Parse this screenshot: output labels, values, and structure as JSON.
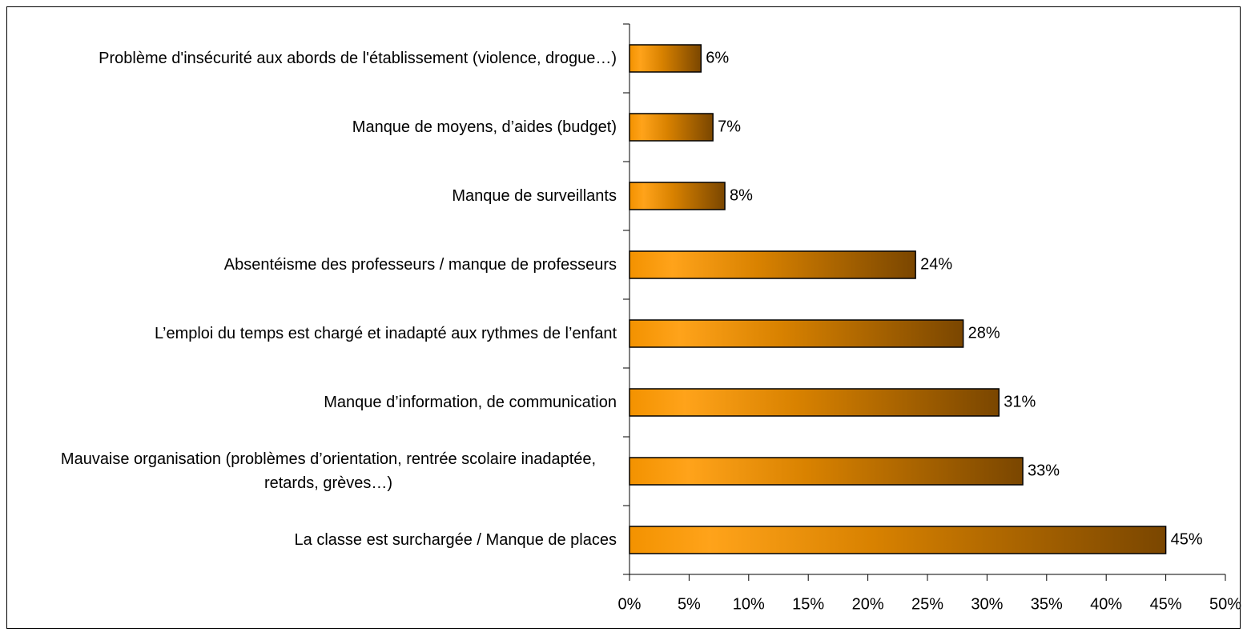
{
  "chart_data": {
    "type": "bar",
    "orientation": "horizontal",
    "categories": [
      "Problème d'insécurité aux abords de l'établissement (violence, drogue…)",
      "Manque de moyens, d’aides (budget)",
      "Manque de surveillants",
      "Absentéisme des professeurs / manque de professeurs",
      "L’emploi du temps est chargé et inadapté aux rythmes de l’enfant",
      "Manque d’information, de communication",
      "Mauvaise organisation (problèmes d’orientation, rentrée scolaire inadaptée, retards, grèves…)",
      "La classe est surchargée / Manque de places"
    ],
    "values": [
      6,
      7,
      8,
      24,
      28,
      31,
      33,
      45
    ],
    "value_labels": [
      "6%",
      "7%",
      "8%",
      "24%",
      "28%",
      "31%",
      "33%",
      "45%"
    ],
    "color": "#f39200",
    "xlim": [
      0,
      50
    ],
    "xticks": [
      {
        "value": 0,
        "label": "0%"
      },
      {
        "value": 5,
        "label": "5%"
      },
      {
        "value": 10,
        "label": "10%"
      },
      {
        "value": 15,
        "label": "15%"
      },
      {
        "value": 20,
        "label": "20%"
      },
      {
        "value": 25,
        "label": "25%"
      },
      {
        "value": 30,
        "label": "30%"
      },
      {
        "value": 35,
        "label": "35%"
      },
      {
        "value": 40,
        "label": "40%"
      },
      {
        "value": 45,
        "label": "45%"
      },
      {
        "value": 50,
        "label": "50%"
      }
    ],
    "grid": false
  }
}
